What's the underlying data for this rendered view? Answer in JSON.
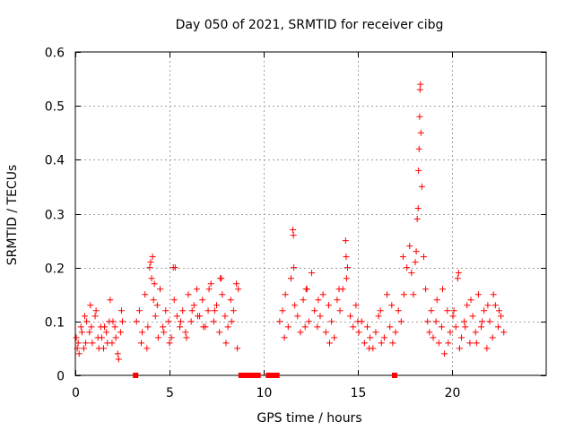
{
  "chart_data": {
    "type": "scatter",
    "title": "Day 050 of 2021, SRMTID for receiver cibg",
    "xlabel": "GPS time / hours",
    "ylabel": "SRMTID / TECUs",
    "xlim": [
      0,
      25
    ],
    "ylim": [
      0,
      0.6
    ],
    "xticks": [
      0,
      5,
      10,
      15,
      20
    ],
    "xtick_labels": [
      "0",
      "5",
      "10",
      "15",
      "20"
    ],
    "yticks": [
      0,
      0.1,
      0.2,
      0.3,
      0.4,
      0.5,
      0.6
    ],
    "ytick_labels": [
      "0",
      "0.1",
      "0.2",
      "0.3",
      "0.4",
      "0.5",
      "0.6"
    ],
    "grid": true,
    "marker": "+",
    "color": "#ff0000",
    "series": [
      {
        "name": "SRMTID",
        "x": [
          0.05,
          0.15,
          0.3,
          0.45,
          0.6,
          0.75,
          0.9,
          1.05,
          1.2,
          1.35,
          1.5,
          1.65,
          1.8,
          1.95,
          2.1,
          2.25,
          2.4,
          2.5,
          0.1,
          0.35,
          0.55,
          0.85,
          1.1,
          1.4,
          1.7,
          2.0,
          2.3,
          0.2,
          0.5,
          0.8,
          1.25,
          1.55,
          1.85,
          2.15,
          2.45,
          3.25,
          3.4,
          3.55,
          3.7,
          3.85,
          3.95,
          4.05,
          4.15,
          4.25,
          4.35,
          4.5,
          4.65,
          4.8,
          4.95,
          5.1,
          5.25,
          5.4,
          5.55,
          5.7,
          5.85,
          6.0,
          6.15,
          6.3,
          6.45,
          6.6,
          6.75,
          6.9,
          7.05,
          7.2,
          7.35,
          7.5,
          7.65,
          7.8,
          7.95,
          8.1,
          8.25,
          8.4,
          8.55,
          8.65,
          3.5,
          3.8,
          4.1,
          4.4,
          4.7,
          5.0,
          5.3,
          5.6,
          5.9,
          6.2,
          6.5,
          6.8,
          7.1,
          7.4,
          7.7,
          8.0,
          8.3,
          8.6,
          4.0,
          4.2,
          5.2,
          7.75,
          10.85,
          11.0,
          11.15,
          11.3,
          11.45,
          11.55,
          11.65,
          11.8,
          11.95,
          12.1,
          12.25,
          12.4,
          12.55,
          12.7,
          12.85,
          13.0,
          13.15,
          13.3,
          13.45,
          13.6,
          13.75,
          13.9,
          14.05,
          14.2,
          14.35,
          14.45,
          14.6,
          14.75,
          14.9,
          15.05,
          15.2,
          15.35,
          15.5,
          15.65,
          15.8,
          15.95,
          16.1,
          16.25,
          16.4,
          16.55,
          16.7,
          16.85,
          17.0,
          17.15,
          17.3,
          17.45,
          17.6,
          17.75,
          11.1,
          11.6,
          12.2,
          12.9,
          13.5,
          14.0,
          14.4,
          15.0,
          15.6,
          16.2,
          16.8,
          17.4,
          11.58,
          12.3,
          14.38,
          17.85,
          17.95,
          18.05,
          18.1,
          18.15,
          18.2,
          18.22,
          18.25,
          18.28,
          18.3,
          18.32,
          18.35,
          18.4,
          18.5,
          18.6,
          18.7,
          18.8,
          18.9,
          19.0,
          19.15,
          19.3,
          19.45,
          19.6,
          19.75,
          19.9,
          20.05,
          20.2,
          20.35,
          20.5,
          20.65,
          20.8,
          20.95,
          21.1,
          21.25,
          21.4,
          21.55,
          21.7,
          21.85,
          22.0,
          22.15,
          22.3,
          22.45,
          22.6,
          22.75,
          19.2,
          19.5,
          19.8,
          20.1,
          20.4,
          20.7,
          21.0,
          21.3,
          21.6,
          21.9,
          22.2,
          22.5,
          20.3
        ],
        "y": [
          0.07,
          0.06,
          0.09,
          0.05,
          0.1,
          0.08,
          0.06,
          0.11,
          0.07,
          0.09,
          0.05,
          0.08,
          0.1,
          0.06,
          0.09,
          0.04,
          0.08,
          0.1,
          0.05,
          0.08,
          0.06,
          0.09,
          0.12,
          0.07,
          0.06,
          0.1,
          0.03,
          0.04,
          0.11,
          0.13,
          0.05,
          0.09,
          0.14,
          0.07,
          0.12,
          0.1,
          0.12,
          0.08,
          0.15,
          0.09,
          0.2,
          0.18,
          0.14,
          0.11,
          0.13,
          0.16,
          0.09,
          0.12,
          0.1,
          0.07,
          0.14,
          0.11,
          0.09,
          0.12,
          0.08,
          0.15,
          0.1,
          0.13,
          0.16,
          0.11,
          0.14,
          0.09,
          0.12,
          0.17,
          0.1,
          0.13,
          0.08,
          0.15,
          0.11,
          0.09,
          0.14,
          0.12,
          0.17,
          0.16,
          0.06,
          0.05,
          0.22,
          0.07,
          0.08,
          0.06,
          0.2,
          0.1,
          0.07,
          0.12,
          0.11,
          0.09,
          0.16,
          0.12,
          0.18,
          0.06,
          0.1,
          0.05,
          0.21,
          0.17,
          0.2,
          0.18,
          0.1,
          0.12,
          0.15,
          0.09,
          0.18,
          0.27,
          0.13,
          0.11,
          0.08,
          0.14,
          0.16,
          0.1,
          0.19,
          0.12,
          0.09,
          0.11,
          0.15,
          0.08,
          0.13,
          0.1,
          0.07,
          0.14,
          0.12,
          0.16,
          0.25,
          0.2,
          0.11,
          0.09,
          0.13,
          0.08,
          0.1,
          0.06,
          0.09,
          0.07,
          0.05,
          0.08,
          0.11,
          0.06,
          0.07,
          0.15,
          0.09,
          0.06,
          0.08,
          0.12,
          0.1,
          0.15,
          0.2,
          0.24,
          0.07,
          0.2,
          0.09,
          0.14,
          0.06,
          0.16,
          0.18,
          0.1,
          0.05,
          0.12,
          0.13,
          0.22,
          0.26,
          0.16,
          0.22,
          0.19,
          0.15,
          0.21,
          0.23,
          0.29,
          0.31,
          0.38,
          0.42,
          0.48,
          0.53,
          0.54,
          0.45,
          0.35,
          0.22,
          0.16,
          0.1,
          0.08,
          0.12,
          0.07,
          0.1,
          0.06,
          0.09,
          0.04,
          0.12,
          0.08,
          0.11,
          0.09,
          0.19,
          0.07,
          0.1,
          0.13,
          0.06,
          0.11,
          0.08,
          0.15,
          0.09,
          0.12,
          0.05,
          0.1,
          0.07,
          0.13,
          0.09,
          0.11,
          0.08,
          0.14,
          0.16,
          0.06,
          0.12,
          0.05,
          0.09,
          0.14,
          0.06,
          0.1,
          0.13,
          0.15,
          0.12,
          0.18
        ],
        "zero_x": [
          3.2,
          8.8,
          8.95,
          9.1,
          9.25,
          9.4,
          9.55,
          9.7,
          10.25,
          10.4,
          10.55,
          10.7,
          16.95
        ]
      }
    ]
  }
}
